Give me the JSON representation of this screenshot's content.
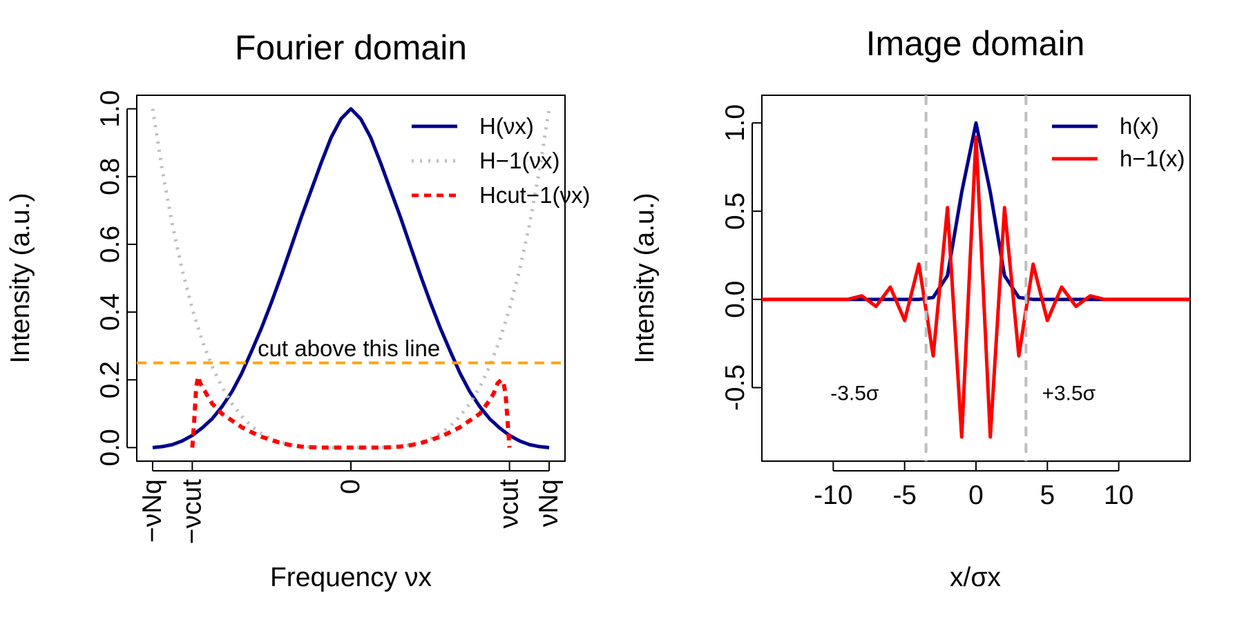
{
  "chart_data": [
    {
      "type": "line",
      "title": "Fourier domain",
      "xlabel": "Frequency νx",
      "ylabel": "Intensity (a.u.)",
      "xlim": [
        -1.0,
        1.0
      ],
      "ylim": [
        0,
        1
      ],
      "y_ticks": [
        "0.0",
        "0.2",
        "0.4",
        "0.6",
        "0.8",
        "1.0"
      ],
      "x_tick_labels": [
        {
          "x": -1.0,
          "label": "−νNq"
        },
        {
          "x": -0.8,
          "label": "−νcut"
        },
        {
          "x": 0.0,
          "label": "0"
        },
        {
          "x": 0.8,
          "label": "νcut"
        },
        {
          "x": 1.0,
          "label": "νNq"
        }
      ],
      "legend_position": "top-right",
      "series": [
        {
          "name": "H(νx)",
          "color": "#00008B",
          "style": "solid",
          "x": [
            -1.0,
            -0.95,
            -0.9,
            -0.85,
            -0.8,
            -0.75,
            -0.7,
            -0.65,
            -0.6,
            -0.55,
            -0.5,
            -0.45,
            -0.4,
            -0.35,
            -0.3,
            -0.25,
            -0.2,
            -0.15,
            -0.1,
            -0.05,
            0.0,
            0.05,
            0.1,
            0.15,
            0.2,
            0.25,
            0.3,
            0.35,
            0.4,
            0.45,
            0.5,
            0.55,
            0.6,
            0.65,
            0.7,
            0.75,
            0.8,
            0.85,
            0.9,
            0.95,
            1.0
          ],
          "values": [
            0.0,
            0.003,
            0.009,
            0.02,
            0.036,
            0.058,
            0.085,
            0.121,
            0.165,
            0.22,
            0.286,
            0.354,
            0.43,
            0.51,
            0.595,
            0.68,
            0.76,
            0.84,
            0.915,
            0.97,
            1.0,
            0.97,
            0.915,
            0.84,
            0.76,
            0.68,
            0.595,
            0.51,
            0.43,
            0.354,
            0.286,
            0.22,
            0.165,
            0.121,
            0.085,
            0.058,
            0.036,
            0.02,
            0.009,
            0.003,
            0.0
          ]
        },
        {
          "name": "H−1(νx)",
          "color": "#BEBEBE",
          "style": "dotted",
          "x": [
            -1.0,
            -0.95,
            -0.9,
            -0.85,
            -0.8,
            -0.75,
            -0.7,
            -0.65,
            -0.6,
            -0.55,
            -0.5,
            -0.45,
            -0.4,
            -0.35,
            -0.3,
            -0.25,
            -0.2,
            -0.15,
            -0.1,
            -0.05,
            0.0,
            0.05,
            0.1,
            0.15,
            0.2,
            0.25,
            0.3,
            0.35,
            0.4,
            0.45,
            0.5,
            0.55,
            0.6,
            0.65,
            0.7,
            0.75,
            0.8,
            0.85,
            0.9,
            0.95,
            1.0
          ],
          "values": [
            1.0,
            0.815,
            0.656,
            0.522,
            0.41,
            0.316,
            0.24,
            0.179,
            0.13,
            0.092,
            0.0625,
            0.041,
            0.0256,
            0.015,
            0.0081,
            0.004,
            0.0016,
            0.0005,
            0.0001,
            0.0,
            0.0,
            0.0,
            0.0001,
            0.0005,
            0.0016,
            0.004,
            0.0081,
            0.015,
            0.0256,
            0.041,
            0.0625,
            0.092,
            0.13,
            0.179,
            0.24,
            0.316,
            0.41,
            0.522,
            0.656,
            0.815,
            1.0
          ]
        },
        {
          "name": "Hcut−1(νx)",
          "color": "#FF0000",
          "style": "dashed",
          "x": [
            -0.8,
            -0.79,
            -0.78,
            -0.77,
            -0.76,
            -0.74,
            -0.72,
            -0.7,
            -0.65,
            -0.6,
            -0.55,
            -0.5,
            -0.45,
            -0.4,
            -0.35,
            -0.3,
            -0.25,
            -0.2,
            -0.15,
            -0.1,
            -0.05,
            0.0,
            0.05,
            0.1,
            0.15,
            0.2,
            0.25,
            0.3,
            0.35,
            0.4,
            0.45,
            0.5,
            0.55,
            0.6,
            0.65,
            0.7,
            0.72,
            0.74,
            0.76,
            0.77,
            0.78,
            0.79,
            0.8
          ],
          "values": [
            0.0,
            0.08,
            0.18,
            0.21,
            0.19,
            0.17,
            0.15,
            0.13,
            0.1,
            0.08,
            0.06,
            0.045,
            0.032,
            0.022,
            0.013,
            0.007,
            0.003,
            0.001,
            0.0,
            0.0,
            0.0,
            0.0,
            0.0,
            0.0,
            0.0,
            0.001,
            0.003,
            0.007,
            0.013,
            0.022,
            0.032,
            0.045,
            0.06,
            0.08,
            0.1,
            0.14,
            0.16,
            0.19,
            0.2,
            0.19,
            0.16,
            0.08,
            0.0
          ]
        }
      ],
      "annotations": [
        {
          "text": "cut above this line",
          "x": -0.47,
          "y": 0.27
        },
        {
          "type": "hline",
          "y": 0.25,
          "color": "#FFA500",
          "style": "dashed"
        }
      ]
    },
    {
      "type": "line",
      "title": "Image domain",
      "xlabel": "x/σx",
      "ylabel": "Intensity (a.u.)",
      "xlim": [
        -15,
        15
      ],
      "ylim": [
        -0.84,
        1.08
      ],
      "x_ticks": [
        "-10",
        "-5",
        "0",
        "5",
        "10"
      ],
      "y_ticks": [
        "-0.5",
        "0.0",
        "0.5",
        "1.0"
      ],
      "legend_position": "top-right",
      "series": [
        {
          "name": "h(x)",
          "color": "#00008B",
          "style": "solid",
          "x": [
            -15,
            -14,
            -13,
            -12,
            -11,
            -10,
            -9,
            -8,
            -7,
            -6,
            -5,
            -4,
            -3,
            -2,
            -1,
            0,
            1,
            2,
            3,
            4,
            5,
            6,
            7,
            8,
            9,
            10,
            11,
            12,
            13,
            14,
            15
          ],
          "values": [
            0,
            0,
            0,
            0,
            0,
            0,
            0,
            0,
            0,
            0,
            0,
            0,
            0.011,
            0.135,
            0.607,
            1.0,
            0.607,
            0.135,
            0.011,
            0,
            0,
            0,
            0,
            0,
            0,
            0,
            0,
            0,
            0,
            0,
            0
          ]
        },
        {
          "name": "h−1(x)",
          "color": "#FF0000",
          "style": "solid",
          "x": [
            -15,
            -14,
            -13,
            -12,
            -11,
            -10,
            -9,
            -8,
            -7,
            -6,
            -5,
            -4,
            -3,
            -2,
            -1,
            0,
            1,
            2,
            3,
            4,
            5,
            6,
            7,
            8,
            9,
            10,
            11,
            12,
            13,
            14,
            15
          ],
          "values": [
            0,
            0,
            0,
            0,
            0,
            0,
            0,
            0.02,
            -0.04,
            0.07,
            -0.12,
            0.2,
            -0.32,
            0.52,
            -0.78,
            0.92,
            -0.78,
            0.52,
            -0.32,
            0.2,
            -0.12,
            0.07,
            -0.04,
            0.02,
            0,
            0,
            0,
            0,
            0,
            0,
            0
          ]
        }
      ],
      "annotations": [
        {
          "type": "vline",
          "x": -3.5,
          "color": "#BEBEBE",
          "style": "dashed"
        },
        {
          "type": "vline",
          "x": 3.5,
          "color": "#BEBEBE",
          "style": "dashed"
        },
        {
          "text": "-3.5σ",
          "x": -8.5,
          "y": -0.57
        },
        {
          "text": "+3.5σ",
          "x": 6.5,
          "y": -0.57
        }
      ]
    }
  ]
}
